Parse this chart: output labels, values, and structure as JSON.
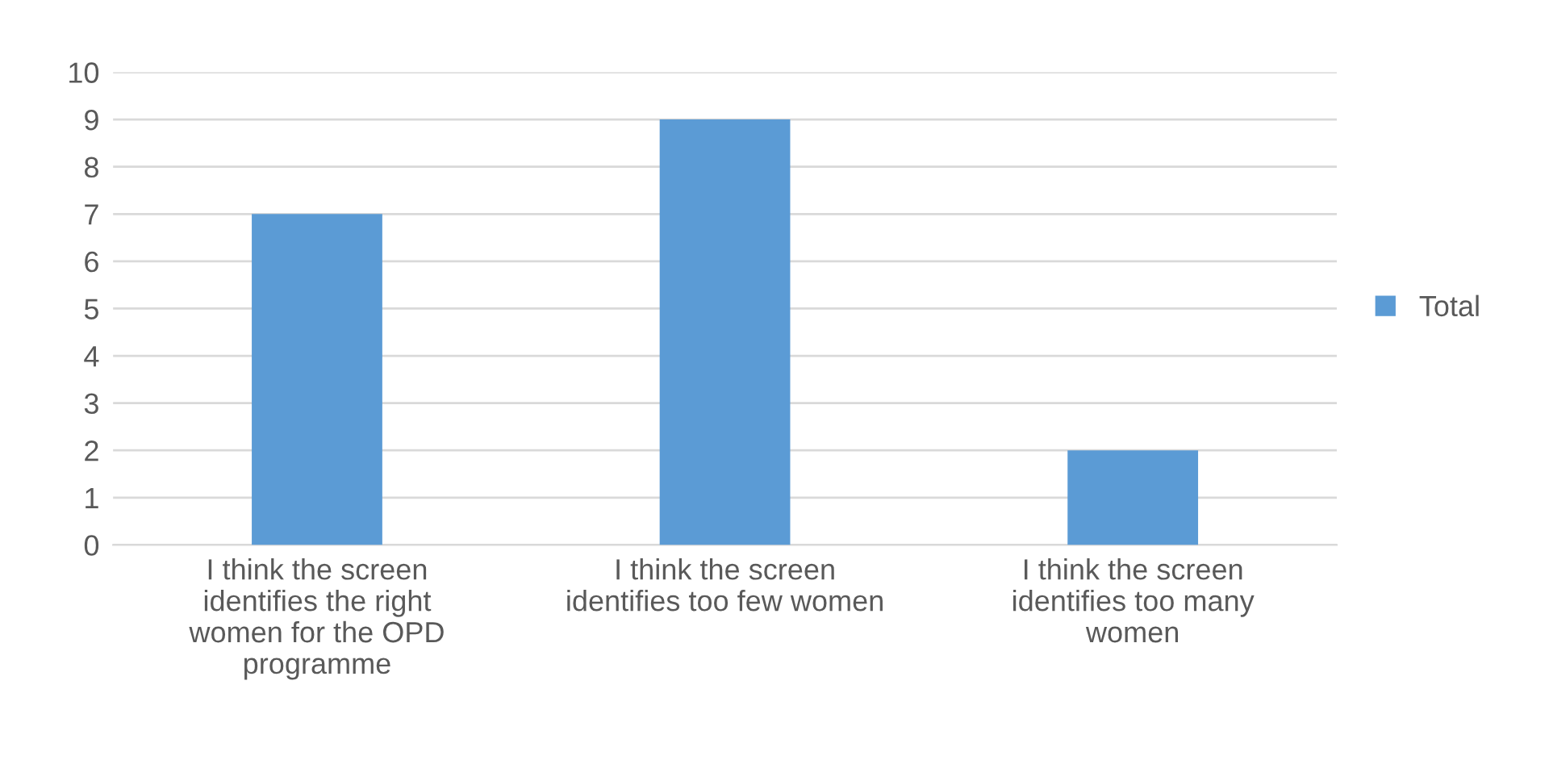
{
  "chart_data": {
    "type": "bar",
    "categories": [
      "I think the screen\nidentifies the right\nwomen for the OPD\nprogramme",
      "I think the screen\nidentifies too few women",
      "I think the screen\nidentifies too many\nwomen"
    ],
    "series": [
      {
        "name": "Total",
        "color": "#5b9bd5",
        "values": [
          7,
          9,
          2
        ]
      }
    ],
    "ylim": [
      0,
      10
    ],
    "yticks": [
      0,
      1,
      2,
      3,
      4,
      5,
      6,
      7,
      8,
      9,
      10
    ],
    "grid": "y",
    "legend": "right"
  }
}
